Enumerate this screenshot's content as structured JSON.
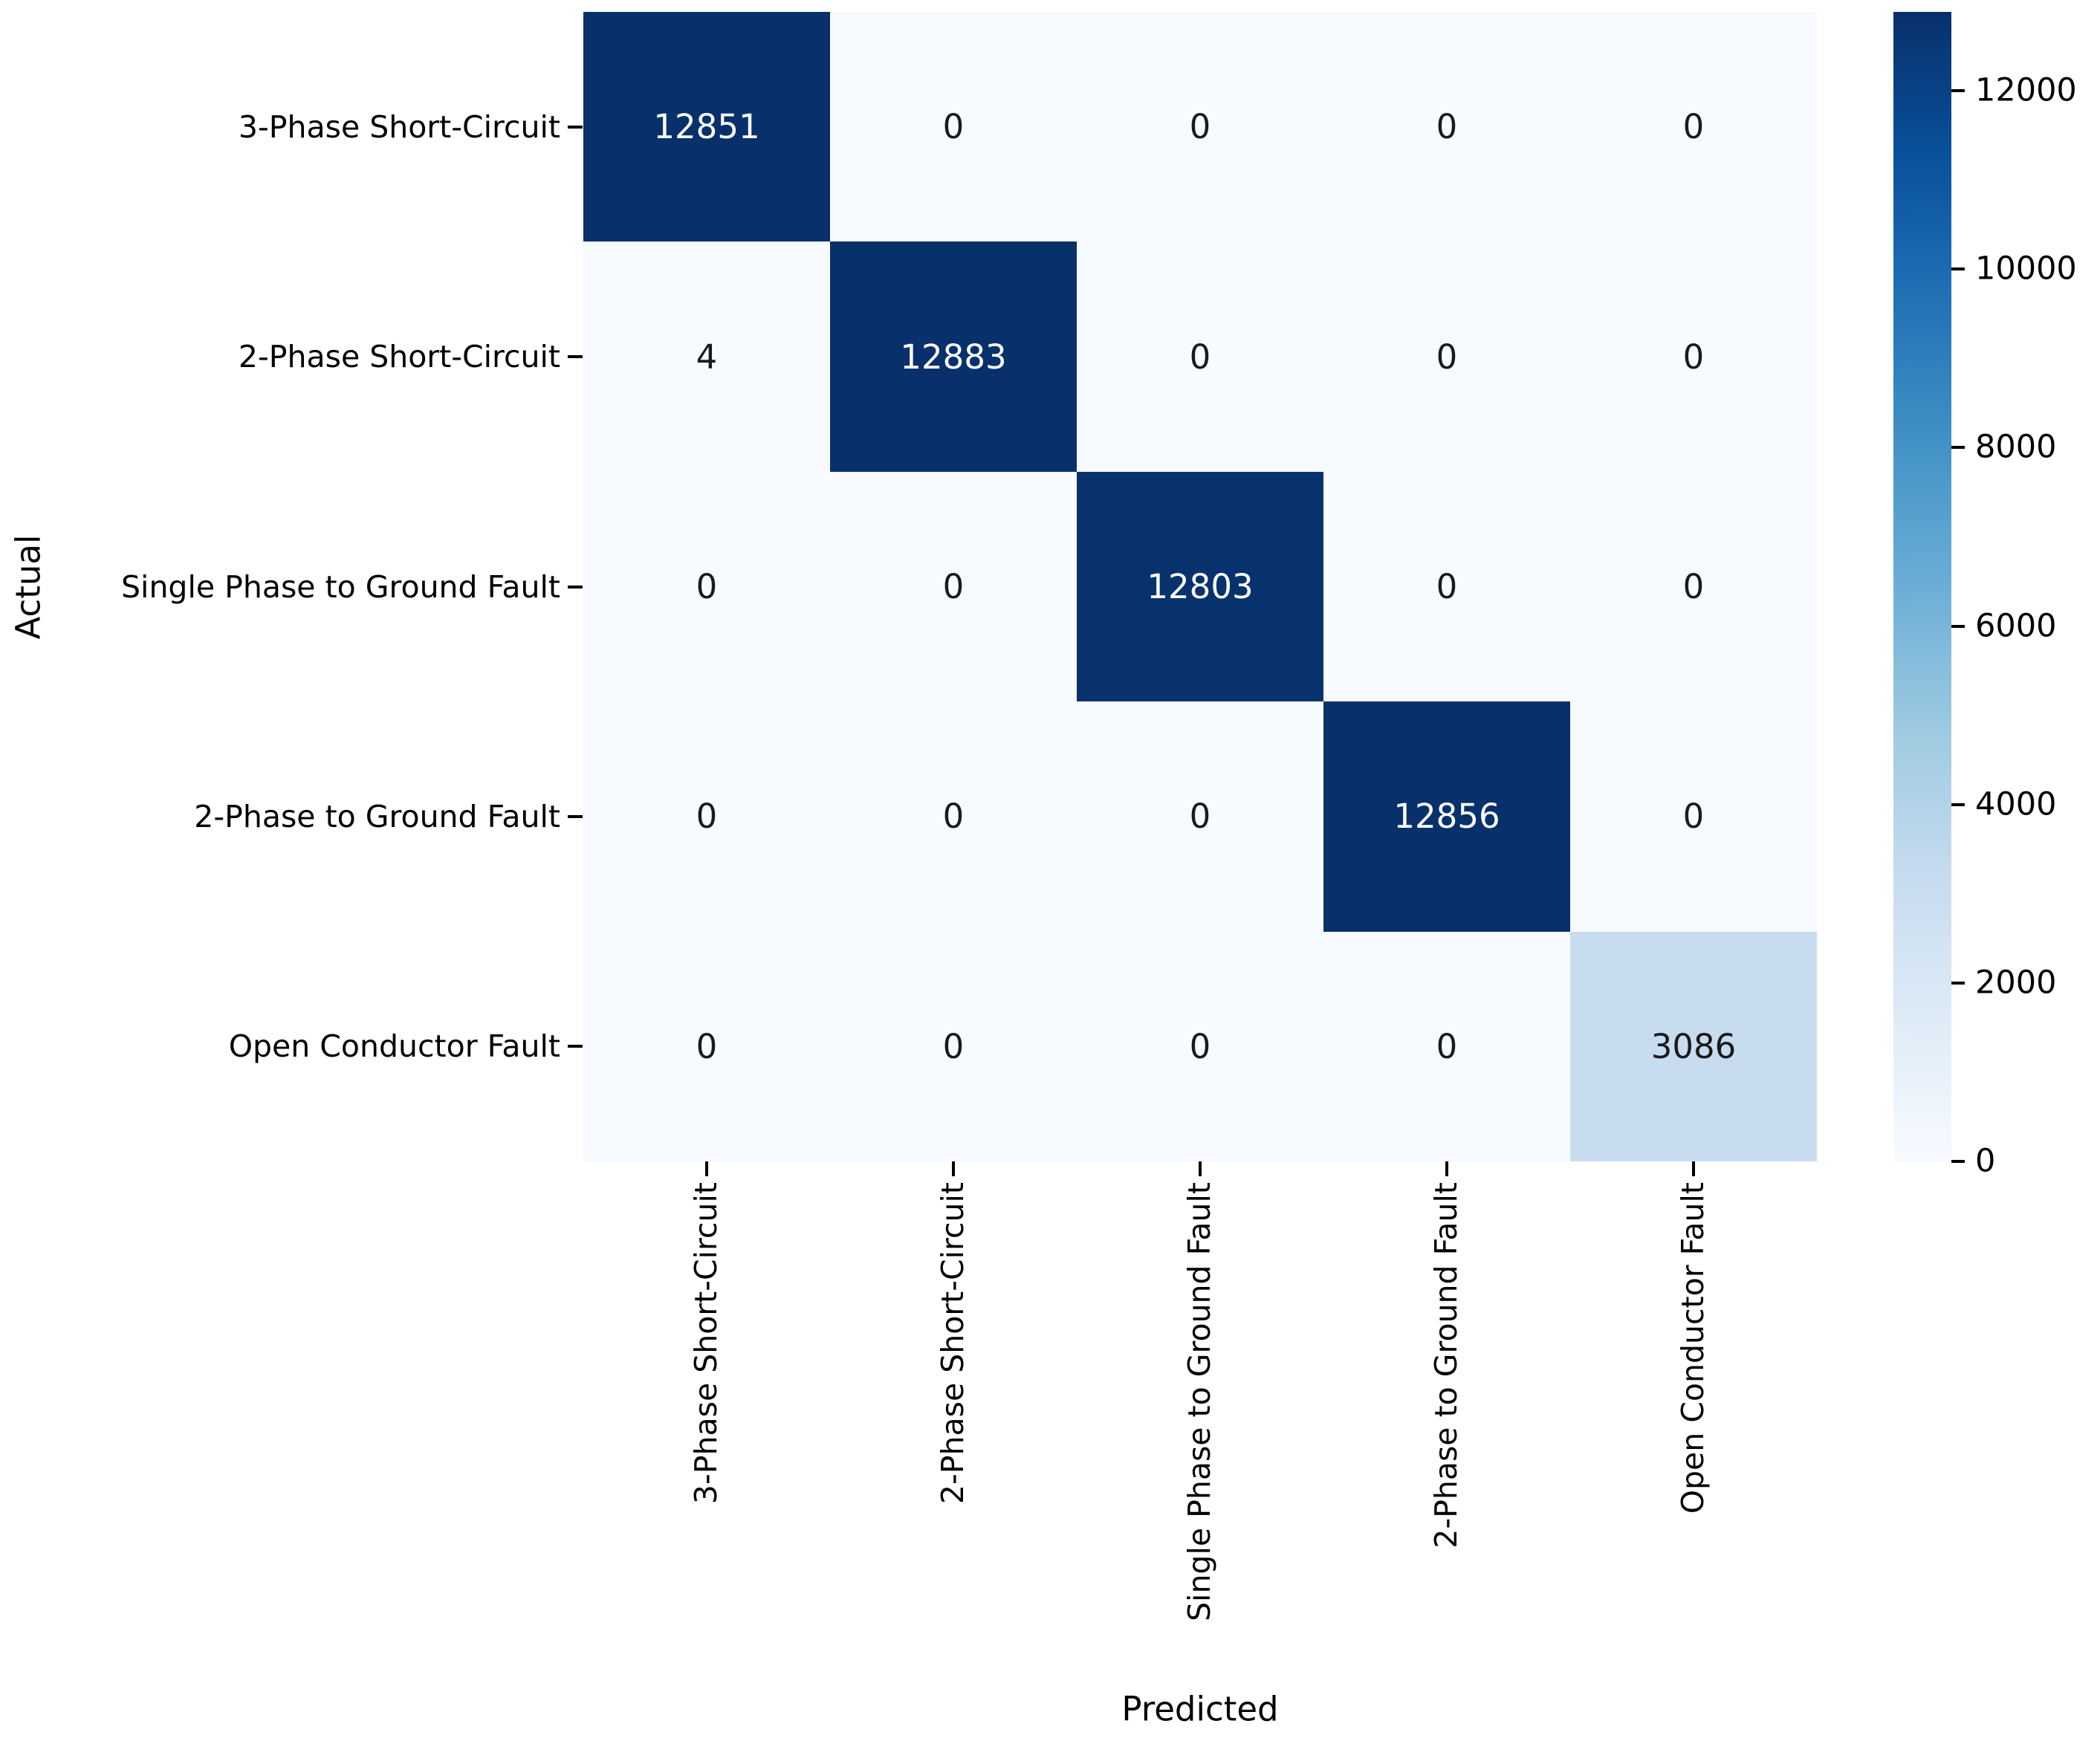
{
  "chart_data": {
    "type": "heatmap",
    "title": "",
    "xlabel": "Predicted",
    "ylabel": "Actual",
    "x_categories": [
      "3-Phase Short-Circuit",
      "2-Phase Short-Circuit",
      "Single Phase to Ground Fault",
      "2-Phase to Ground Fault",
      "Open Conductor Fault"
    ],
    "y_categories": [
      "3-Phase Short-Circuit",
      "2-Phase Short-Circuit",
      "Single Phase to Ground Fault",
      "2-Phase to Ground Fault",
      "Open Conductor Fault"
    ],
    "matrix": [
      [
        12851,
        0,
        0,
        0,
        0
      ],
      [
        4,
        12883,
        0,
        0,
        0
      ],
      [
        0,
        0,
        12803,
        0,
        0
      ],
      [
        0,
        0,
        0,
        12856,
        0
      ],
      [
        0,
        0,
        0,
        0,
        3086
      ]
    ],
    "vmin": 0,
    "vmax": 12883,
    "grid": false,
    "legend_position": "right-colorbar",
    "colorbar_ticks": [
      0,
      2000,
      4000,
      6000,
      8000,
      10000,
      12000
    ],
    "colormap": {
      "name": "Blues",
      "anchors": [
        [
          0.0,
          "#f7fbff"
        ],
        [
          0.125,
          "#deebf7"
        ],
        [
          0.25,
          "#c6dbef"
        ],
        [
          0.375,
          "#9ecae1"
        ],
        [
          0.5,
          "#6baed6"
        ],
        [
          0.625,
          "#4292c6"
        ],
        [
          0.75,
          "#2171b5"
        ],
        [
          0.875,
          "#08519c"
        ],
        [
          1.0,
          "#08306b"
        ]
      ]
    },
    "annotation_colors": {
      "on_dark": "#ffffff",
      "on_light": "#1a1a1a"
    },
    "tick_color": "#000000"
  }
}
